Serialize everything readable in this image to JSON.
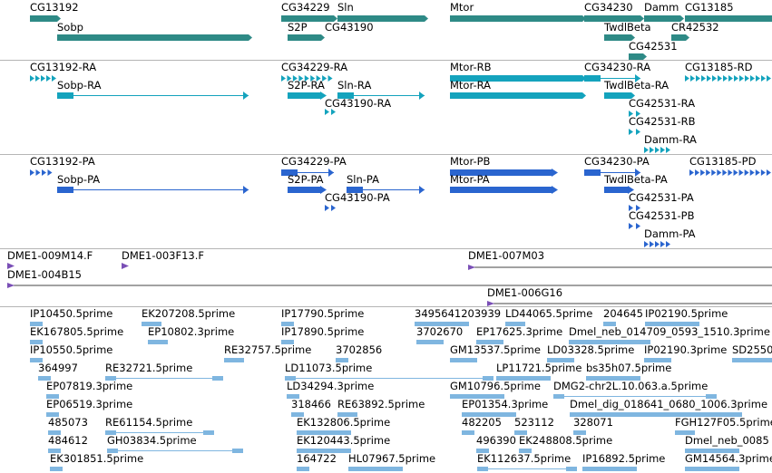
{
  "colors": {
    "gene": "#2e8a86",
    "transcript": "#14a3bd",
    "protein": "#2a65cf",
    "clone": "#7a4fb6",
    "est": "#7fb6e0",
    "divider": "#b5b5b5"
  },
  "tracks": {
    "genes": {
      "features": [
        {
          "name": "CG13192"
        },
        {
          "name": "Sobp"
        },
        {
          "name": "CG34229"
        },
        {
          "name": "S2P"
        },
        {
          "name": "Sln"
        },
        {
          "name": "CG43190"
        },
        {
          "name": "Mtor"
        },
        {
          "name": "CG34230"
        },
        {
          "name": "Damm"
        },
        {
          "name": "CG13185"
        },
        {
          "name": "TwdlBeta"
        },
        {
          "name": "CR42532"
        },
        {
          "name": "CG42531"
        }
      ]
    },
    "transcripts": {
      "features": [
        {
          "name": "CG13192-RA"
        },
        {
          "name": "Sobp-RA"
        },
        {
          "name": "CG34229-RA"
        },
        {
          "name": "S2P-RA"
        },
        {
          "name": "Sln-RA"
        },
        {
          "name": "CG43190-RA"
        },
        {
          "name": "Mtor-RB"
        },
        {
          "name": "Mtor-RA"
        },
        {
          "name": "CG34230-RA"
        },
        {
          "name": "TwdlBeta-RA"
        },
        {
          "name": "CG13185-RD"
        },
        {
          "name": "CG42531-RA"
        },
        {
          "name": "CG42531-RB"
        },
        {
          "name": "Damm-RA"
        }
      ]
    },
    "proteins": {
      "features": [
        {
          "name": "CG13192-PA"
        },
        {
          "name": "Sobp-PA"
        },
        {
          "name": "CG34229-PA"
        },
        {
          "name": "S2P-PA"
        },
        {
          "name": "Sln-PA"
        },
        {
          "name": "CG43190-PA"
        },
        {
          "name": "Mtor-PB"
        },
        {
          "name": "Mtor-PA"
        },
        {
          "name": "CG34230-PA"
        },
        {
          "name": "TwdlBeta-PA"
        },
        {
          "name": "CG13185-PD"
        },
        {
          "name": "CG42531-PA"
        },
        {
          "name": "CG42531-PB"
        },
        {
          "name": "Damm-PA"
        }
      ]
    },
    "clones": {
      "features": [
        {
          "name": "DME1-009M14.F"
        },
        {
          "name": "DME1-003F13.F"
        },
        {
          "name": "DME1-007M03"
        },
        {
          "name": "DME1-004B15"
        },
        {
          "name": "DME1-006G16"
        }
      ]
    },
    "ests": {
      "features": [
        {
          "name": "IP10450.5prime"
        },
        {
          "name": "EK207208.5prime"
        },
        {
          "name": "IP17790.5prime"
        },
        {
          "name": "3495641203939"
        },
        {
          "name": "LD44065.5prime"
        },
        {
          "name": "204645"
        },
        {
          "name": "IP02190.5prime"
        },
        {
          "name": "EK167805.5prime"
        },
        {
          "name": "EP10802.3prime"
        },
        {
          "name": "IP17890.5prime"
        },
        {
          "name": "3702670"
        },
        {
          "name": "EP17625.3prime"
        },
        {
          "name": "Dmel_neb_014709_0593_1510.3prime"
        },
        {
          "name": "IP10550.5prime"
        },
        {
          "name": "RE32757.5prime"
        },
        {
          "name": "3702856"
        },
        {
          "name": "GM13537.5prime"
        },
        {
          "name": "LD03328.5prime"
        },
        {
          "name": "IP02190.3prime"
        },
        {
          "name": "SD2550"
        },
        {
          "name": "364997"
        },
        {
          "name": "RE32721.5prime"
        },
        {
          "name": "LD11073.5prime"
        },
        {
          "name": "LP11721.5prime"
        },
        {
          "name": "bs35h07.5prime"
        },
        {
          "name": "EP07819.3prime"
        },
        {
          "name": "LD34294.3prime"
        },
        {
          "name": "GM10796.5prime"
        },
        {
          "name": "DMG2-chr2L.10.063.a.5prime"
        },
        {
          "name": "EP06519.3prime"
        },
        {
          "name": "318466"
        },
        {
          "name": "RE63892.5prime"
        },
        {
          "name": "EP01354.3prime"
        },
        {
          "name": "Dmel_dig_018641_0680_1006.3prime"
        },
        {
          "name": "485073"
        },
        {
          "name": "RE61154.5prime"
        },
        {
          "name": "EK132806.5prime"
        },
        {
          "name": "482205"
        },
        {
          "name": "523112"
        },
        {
          "name": "328071"
        },
        {
          "name": "FGH127F05.5prime"
        },
        {
          "name": "484612"
        },
        {
          "name": "GH03834.5prime"
        },
        {
          "name": "EK120443.5prime"
        },
        {
          "name": "496390"
        },
        {
          "name": "EK248808.5prime"
        },
        {
          "name": "Dmel_neb_0085"
        },
        {
          "name": "EK301851.5prime"
        },
        {
          "name": "164722"
        },
        {
          "name": "HL07967.5prime"
        },
        {
          "name": "EK112637.5prime"
        },
        {
          "name": "IP16892.5prime"
        },
        {
          "name": "GM14564.3prime"
        }
      ]
    }
  }
}
